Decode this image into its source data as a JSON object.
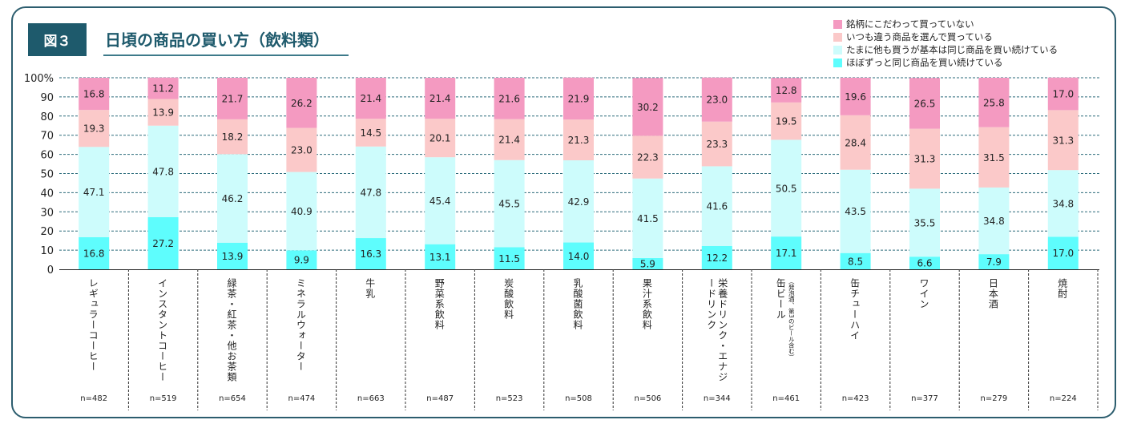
{
  "figure": {
    "badge": "図３",
    "title": "日頃の商品の買い方（飲料類）"
  },
  "colors": {
    "frame": "#2c5d6e",
    "badge": "#1e5a6c",
    "pink": "#f49ac1",
    "lightpink": "#fbc9c9",
    "lightcyan": "#cdfcfc",
    "cyan": "#5efdfd"
  },
  "chart_data": {
    "type": "bar",
    "stacked": true,
    "ylim": [
      0,
      100
    ],
    "y_ticks": [
      "0",
      "10",
      "20",
      "30",
      "40",
      "50",
      "60",
      "70",
      "80",
      "90",
      "100%"
    ],
    "categories": [
      "レギュラーコーヒー",
      "インスタントコーヒー",
      "緑茶・紅茶・他お茶類",
      "ミネラルウォーター",
      "牛乳",
      "野菜系飲料",
      "炭酸飲料",
      "乳酸菌飲料",
      "果汁系飲料",
      "栄養ドリンク・エナジードリンク",
      "缶ビール",
      "缶チューハイ",
      "ワイン",
      "日本酒",
      "焼酎"
    ],
    "category_subs": [
      "",
      "",
      "",
      "",
      "",
      "",
      "",
      "",
      "",
      "",
      "（発泡酒、第3のビール含む）",
      "",
      "",
      "",
      ""
    ],
    "n_labels": [
      "n=482",
      "n=519",
      "n=654",
      "n=474",
      "n=663",
      "n=487",
      "n=523",
      "n=508",
      "n=506",
      "n=344",
      "n=461",
      "n=423",
      "n=377",
      "n=279",
      "n=224"
    ],
    "series": [
      {
        "name": "ほぼずっと同じ商品を買い続けている",
        "color": "#5efdfd",
        "values": [
          16.8,
          27.2,
          13.9,
          9.9,
          16.3,
          13.1,
          11.5,
          14.0,
          5.9,
          12.2,
          17.1,
          8.5,
          6.6,
          7.9,
          17.0
        ]
      },
      {
        "name": "たまに他も買うが基本は同じ商品を買い続けている",
        "color": "#cdfcfc",
        "values": [
          47.1,
          47.8,
          46.2,
          40.9,
          47.8,
          45.4,
          45.5,
          42.9,
          41.5,
          41.6,
          50.5,
          43.5,
          35.5,
          34.8,
          34.8
        ]
      },
      {
        "name": "いつも違う商品を選んで買っている",
        "color": "#fbc9c9",
        "values": [
          19.3,
          13.9,
          18.2,
          23.0,
          14.5,
          20.1,
          21.4,
          21.3,
          22.3,
          23.3,
          19.5,
          28.4,
          31.3,
          31.5,
          31.3
        ]
      },
      {
        "name": "銘柄にこだわって買っていない",
        "color": "#f49ac1",
        "values": [
          16.8,
          11.2,
          21.7,
          26.2,
          21.4,
          21.4,
          21.6,
          21.9,
          30.2,
          23.0,
          12.8,
          19.6,
          26.5,
          25.8,
          17.0
        ]
      }
    ],
    "legend_order": [
      3,
      2,
      1,
      0
    ]
  }
}
